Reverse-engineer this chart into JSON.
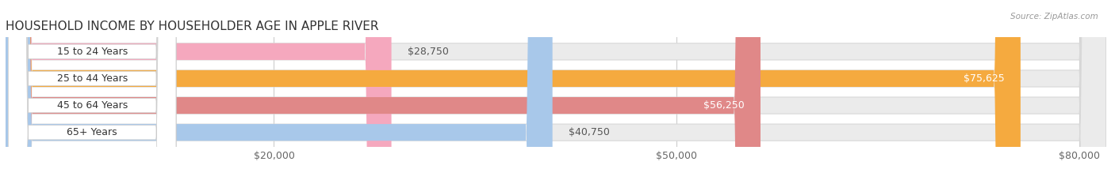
{
  "title": "HOUSEHOLD INCOME BY HOUSEHOLDER AGE IN APPLE RIVER",
  "source": "Source: ZipAtlas.com",
  "categories": [
    "15 to 24 Years",
    "25 to 44 Years",
    "45 to 64 Years",
    "65+ Years"
  ],
  "values": [
    28750,
    75625,
    56250,
    40750
  ],
  "bar_colors": [
    "#f5a8be",
    "#f5aa3f",
    "#e08888",
    "#a8c8ea"
  ],
  "bar_bg_color": "#ebebeb",
  "value_labels": [
    "$28,750",
    "$75,625",
    "$56,250",
    "$40,750"
  ],
  "xlim": [
    0,
    82000
  ],
  "xticks": [
    20000,
    50000,
    80000
  ],
  "xtick_labels": [
    "$20,000",
    "$50,000",
    "$80,000"
  ],
  "background_color": "#ffffff",
  "bar_height": 0.62,
  "title_fontsize": 11,
  "label_fontsize": 9,
  "tick_fontsize": 9,
  "label_box_color": "#ffffff",
  "label_text_color": "#333333",
  "value_label_inside_color": "#ffffff",
  "value_label_outside_color": "#555555"
}
